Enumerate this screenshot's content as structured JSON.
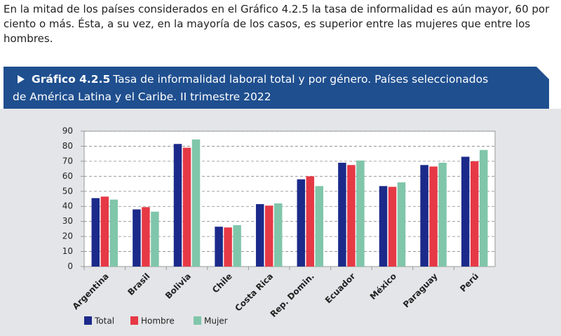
{
  "paragraph": "En la mitad de los países considerados en el Gráfico 4.2.5 la tasa de informalidad es aún mayor, 60 por ciento o más. Ésta, a su vez, en la mayoría de los casos, es superior entre las mujeres que entre los hombres.",
  "chart_data": {
    "type": "bar",
    "title_label": "Gráfico 4.2.5",
    "title": "Tasa de informalidad laboral total y por género. Países seleccionados de América Latina y el Caribe. II trimestre 2022",
    "categories": [
      "Argentina",
      "Brasil",
      "Bolivia",
      "Chile",
      "Costa Rica",
      "Rep. Domin.",
      "Ecuador",
      "México",
      "Paraguay",
      "Perú"
    ],
    "series": [
      {
        "name": "Total",
        "color": "#1b2a8a",
        "values": [
          45.5,
          38,
          81.5,
          26.5,
          41.5,
          58,
          69,
          53.5,
          67.5,
          73
        ]
      },
      {
        "name": "Hombre",
        "color": "#e63946",
        "values": [
          46.5,
          39.5,
          79,
          26,
          40.5,
          60,
          67.5,
          53,
          66.5,
          70
        ]
      },
      {
        "name": "Mujer",
        "color": "#80c6aa",
        "values": [
          44.5,
          36.5,
          84.5,
          27.5,
          42,
          53.5,
          70.5,
          56,
          69,
          77.5
        ]
      }
    ],
    "ylim": [
      0,
      90
    ],
    "yticks": [
      0,
      10,
      20,
      30,
      40,
      50,
      60,
      70,
      80,
      90
    ],
    "grid": true
  }
}
